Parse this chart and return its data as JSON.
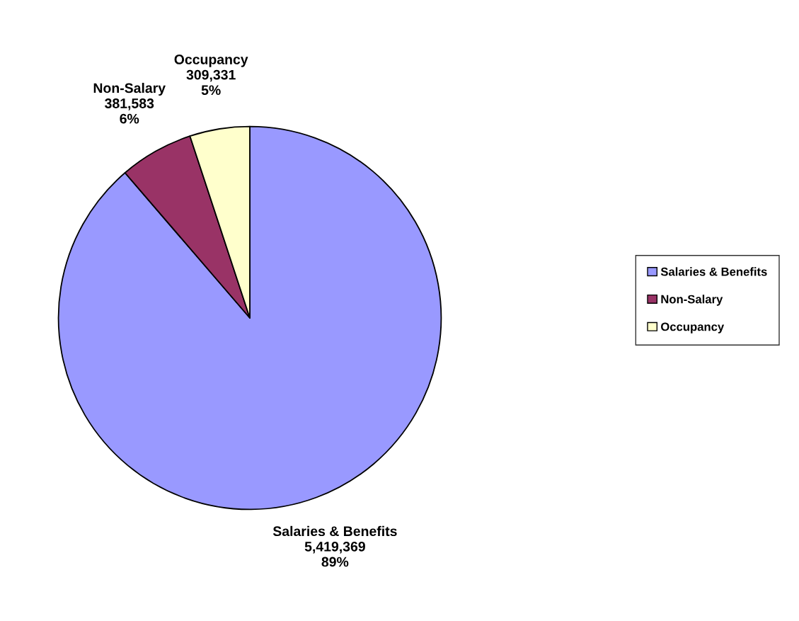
{
  "chart_data": {
    "type": "pie",
    "categories": [
      "Salaries & Benefits",
      "Non-Salary",
      "Occupancy"
    ],
    "values": [
      5419369,
      381583,
      309331
    ],
    "colors": [
      "#9999ff",
      "#993366",
      "#ffffcc"
    ],
    "value_labels": [
      "5,419,369\n89%",
      "381,583\n6%",
      "309,331\n5%"
    ],
    "legend": "right"
  }
}
